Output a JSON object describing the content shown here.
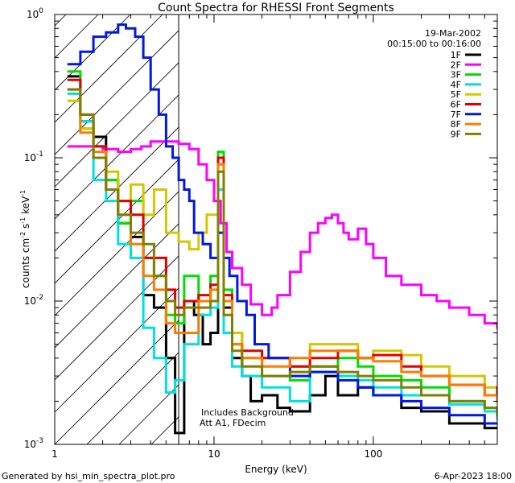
{
  "chart_data": {
    "type": "line",
    "title": "Count Spectra for RHESSI Front Segments",
    "xlabel": "Energy (keV)",
    "ylabel_main": "counts cm",
    "ylabel_sup1": "-2",
    "ylabel_mid": " s",
    "ylabel_sup2": "-1",
    "ylabel_end": " keV",
    "ylabel_sup3": "-1",
    "xscale": "log",
    "yscale": "log",
    "xlim": [
      1,
      600
    ],
    "ylim": [
      0.001,
      1.0
    ],
    "x_ticks": [
      {
        "value": 1,
        "label": "1"
      },
      {
        "value": 10,
        "label": "10"
      },
      {
        "value": 100,
        "label": "100"
      }
    ],
    "y_ticks": [
      {
        "value": 1,
        "base": "10",
        "exp": "0"
      },
      {
        "value": 0.1,
        "base": "10",
        "exp": "-1"
      },
      {
        "value": 0.01,
        "base": "10",
        "exp": "-2"
      },
      {
        "value": 0.001,
        "base": "10",
        "exp": "-3"
      }
    ],
    "date": "19-Mar-2002",
    "time_range": "00:15:00 to 00:16:00",
    "attenuator_line_x": 6.0,
    "annotations": [
      "Includes Background",
      "Att A1, FDecim"
    ],
    "footer_left": "Generated by hsi_min_spectra_plot.pro",
    "footer_right": "6-Apr-2023 18:00",
    "legend_position": "top-right",
    "series": [
      {
        "name": "1F",
        "color": "#000000",
        "points": [
          [
            1.2,
            0.37
          ],
          [
            1.45,
            0.18
          ],
          [
            1.75,
            0.14
          ],
          [
            2.1,
            0.07
          ],
          [
            2.5,
            0.035
          ],
          [
            3.0,
            0.028
          ],
          [
            3.6,
            0.011
          ],
          [
            4.2,
            0.009
          ],
          [
            5.0,
            0.004
          ],
          [
            5.7,
            0.0012
          ],
          [
            6.5,
            0.01
          ],
          [
            7.5,
            0.008
          ],
          [
            8.5,
            0.005
          ],
          [
            9.5,
            0.006
          ],
          [
            10.6,
            0.09
          ],
          [
            11.5,
            0.009
          ],
          [
            13,
            0.004
          ],
          [
            15,
            0.003
          ],
          [
            17,
            0.002
          ],
          [
            20,
            0.0022
          ],
          [
            25,
            0.0018
          ],
          [
            30,
            0.0017
          ],
          [
            40,
            0.0022
          ],
          [
            50,
            0.003
          ],
          [
            60,
            0.0022
          ],
          [
            80,
            0.0025
          ],
          [
            100,
            0.0022
          ],
          [
            150,
            0.0018
          ],
          [
            200,
            0.0017
          ],
          [
            300,
            0.0014
          ],
          [
            500,
            0.0013
          ],
          [
            600,
            0.0013
          ]
        ]
      },
      {
        "name": "2F",
        "color": "#ff00ff",
        "points": [
          [
            1.2,
            0.12
          ],
          [
            1.6,
            0.12
          ],
          [
            2.0,
            0.115
          ],
          [
            2.5,
            0.11
          ],
          [
            3.0,
            0.115
          ],
          [
            3.5,
            0.12
          ],
          [
            4.0,
            0.13
          ],
          [
            5.0,
            0.13
          ],
          [
            6.0,
            0.125
          ],
          [
            7.0,
            0.115
          ],
          [
            8.0,
            0.09
          ],
          [
            9.0,
            0.07
          ],
          [
            10,
            0.05
          ],
          [
            11,
            0.035
          ],
          [
            12,
            0.022
          ],
          [
            13,
            0.017
          ],
          [
            15,
            0.013
          ],
          [
            17,
            0.0095
          ],
          [
            20,
            0.008
          ],
          [
            23,
            0.009
          ],
          [
            25,
            0.011
          ],
          [
            30,
            0.016
          ],
          [
            35,
            0.022
          ],
          [
            40,
            0.03
          ],
          [
            45,
            0.035
          ],
          [
            50,
            0.038
          ],
          [
            55,
            0.04
          ],
          [
            60,
            0.035
          ],
          [
            65,
            0.03
          ],
          [
            70,
            0.027
          ],
          [
            80,
            0.032
          ],
          [
            90,
            0.025
          ],
          [
            100,
            0.02
          ],
          [
            120,
            0.015
          ],
          [
            150,
            0.013
          ],
          [
            200,
            0.011
          ],
          [
            250,
            0.01
          ],
          [
            300,
            0.009
          ],
          [
            400,
            0.008
          ],
          [
            500,
            0.007
          ],
          [
            600,
            0.0065
          ]
        ]
      },
      {
        "name": "3F",
        "color": "#00dd00",
        "points": [
          [
            1.2,
            0.4
          ],
          [
            1.45,
            0.16
          ],
          [
            1.75,
            0.12
          ],
          [
            2.1,
            0.07
          ],
          [
            2.5,
            0.035
          ],
          [
            3.0,
            0.05
          ],
          [
            3.6,
            0.02
          ],
          [
            4.2,
            0.015
          ],
          [
            5.0,
            0.008
          ],
          [
            5.7,
            0.007
          ],
          [
            6.5,
            0.015
          ],
          [
            8,
            0.01
          ],
          [
            9.5,
            0.015
          ],
          [
            10.6,
            0.11
          ],
          [
            11.5,
            0.012
          ],
          [
            13,
            0.006
          ],
          [
            15,
            0.004
          ],
          [
            20,
            0.003
          ],
          [
            30,
            0.0028
          ],
          [
            40,
            0.0035
          ],
          [
            60,
            0.004
          ],
          [
            80,
            0.0035
          ],
          [
            100,
            0.003
          ],
          [
            150,
            0.0028
          ],
          [
            200,
            0.0025
          ],
          [
            300,
            0.002
          ],
          [
            500,
            0.0018
          ],
          [
            600,
            0.0018
          ]
        ]
      },
      {
        "name": "4F",
        "color": "#00e0e0",
        "points": [
          [
            1.2,
            0.28
          ],
          [
            1.45,
            0.18
          ],
          [
            1.75,
            0.07
          ],
          [
            2.1,
            0.05
          ],
          [
            2.5,
            0.025
          ],
          [
            3.0,
            0.02
          ],
          [
            3.6,
            0.0065
          ],
          [
            4.2,
            0.004
          ],
          [
            5.0,
            0.0023
          ],
          [
            5.7,
            0.0028
          ],
          [
            6.5,
            0.005
          ],
          [
            8,
            0.008
          ],
          [
            9.5,
            0.009
          ],
          [
            10.6,
            0.06
          ],
          [
            11.5,
            0.006
          ],
          [
            13,
            0.0035
          ],
          [
            15,
            0.003
          ],
          [
            20,
            0.0025
          ],
          [
            30,
            0.002
          ],
          [
            40,
            0.0032
          ],
          [
            60,
            0.003
          ],
          [
            80,
            0.0028
          ],
          [
            100,
            0.0025
          ],
          [
            150,
            0.0022
          ],
          [
            200,
            0.0022
          ],
          [
            300,
            0.0019
          ],
          [
            500,
            0.0017
          ],
          [
            600,
            0.0015
          ]
        ]
      },
      {
        "name": "5F",
        "color": "#d4c600",
        "points": [
          [
            1.2,
            0.25
          ],
          [
            1.45,
            0.16
          ],
          [
            1.75,
            0.1
          ],
          [
            2.1,
            0.08
          ],
          [
            2.5,
            0.05
          ],
          [
            3.0,
            0.065
          ],
          [
            3.6,
            0.04
          ],
          [
            4.2,
            0.06
          ],
          [
            5.0,
            0.03
          ],
          [
            6.0,
            0.026
          ],
          [
            7.0,
            0.023
          ],
          [
            8.0,
            0.03
          ],
          [
            9.0,
            0.04
          ],
          [
            10.6,
            0.08
          ],
          [
            11.5,
            0.01
          ],
          [
            13,
            0.006
          ],
          [
            15,
            0.004
          ],
          [
            20,
            0.004
          ],
          [
            30,
            0.0035
          ],
          [
            40,
            0.005
          ],
          [
            60,
            0.005
          ],
          [
            80,
            0.004
          ],
          [
            100,
            0.0045
          ],
          [
            150,
            0.0042
          ],
          [
            200,
            0.0035
          ],
          [
            300,
            0.003
          ],
          [
            500,
            0.0025
          ],
          [
            600,
            0.002
          ]
        ]
      },
      {
        "name": "6F",
        "color": "#e00000",
        "points": [
          [
            1.2,
            0.35
          ],
          [
            1.45,
            0.2
          ],
          [
            1.75,
            0.12
          ],
          [
            2.1,
            0.06
          ],
          [
            2.5,
            0.05
          ],
          [
            3.0,
            0.04
          ],
          [
            3.6,
            0.02
          ],
          [
            4.2,
            0.02
          ],
          [
            5.0,
            0.012
          ],
          [
            5.7,
            0.009
          ],
          [
            6.5,
            0.01
          ],
          [
            8,
            0.011
          ],
          [
            9.5,
            0.013
          ],
          [
            10.6,
            0.1
          ],
          [
            11.5,
            0.011
          ],
          [
            13,
            0.005
          ],
          [
            15,
            0.0045
          ],
          [
            20,
            0.004
          ],
          [
            30,
            0.0035
          ],
          [
            40,
            0.004
          ],
          [
            60,
            0.0045
          ],
          [
            80,
            0.004
          ],
          [
            100,
            0.0042
          ],
          [
            150,
            0.0035
          ],
          [
            200,
            0.003
          ],
          [
            300,
            0.0026
          ],
          [
            500,
            0.0022
          ],
          [
            600,
            0.0025
          ]
        ]
      },
      {
        "name": "7F",
        "color": "#0018e0",
        "points": [
          [
            1.2,
            0.45
          ],
          [
            1.45,
            0.55
          ],
          [
            1.75,
            0.7
          ],
          [
            2.1,
            0.75
          ],
          [
            2.5,
            0.85
          ],
          [
            2.8,
            0.8
          ],
          [
            3.2,
            0.7
          ],
          [
            3.6,
            0.5
          ],
          [
            4.0,
            0.3
          ],
          [
            4.5,
            0.2
          ],
          [
            5.0,
            0.12
          ],
          [
            5.5,
            0.1
          ],
          [
            6.0,
            0.07
          ],
          [
            6.5,
            0.06
          ],
          [
            7.0,
            0.05
          ],
          [
            7.5,
            0.03
          ],
          [
            8.5,
            0.025
          ],
          [
            9.5,
            0.02
          ],
          [
            10.6,
            0.03
          ],
          [
            11.5,
            0.02
          ],
          [
            12.5,
            0.015
          ],
          [
            14,
            0.01
          ],
          [
            16,
            0.008
          ],
          [
            18,
            0.005
          ],
          [
            22,
            0.004
          ],
          [
            30,
            0.003
          ],
          [
            40,
            0.0032
          ],
          [
            60,
            0.0028
          ],
          [
            80,
            0.0025
          ],
          [
            100,
            0.0022
          ],
          [
            150,
            0.002
          ],
          [
            200,
            0.0018
          ],
          [
            300,
            0.0016
          ],
          [
            500,
            0.0014
          ],
          [
            600,
            0.0014
          ]
        ]
      },
      {
        "name": "8F",
        "color": "#ff7b00",
        "points": [
          [
            1.2,
            0.3
          ],
          [
            1.45,
            0.15
          ],
          [
            1.75,
            0.11
          ],
          [
            2.1,
            0.06
          ],
          [
            2.5,
            0.04
          ],
          [
            3.0,
            0.025
          ],
          [
            3.6,
            0.015
          ],
          [
            4.2,
            0.012
          ],
          [
            5.0,
            0.007
          ],
          [
            5.7,
            0.006
          ],
          [
            6.5,
            0.006
          ],
          [
            8,
            0.01
          ],
          [
            9.5,
            0.012
          ],
          [
            10.6,
            0.09
          ],
          [
            11.5,
            0.01
          ],
          [
            13,
            0.005
          ],
          [
            15,
            0.004
          ],
          [
            20,
            0.0035
          ],
          [
            30,
            0.004
          ],
          [
            40,
            0.0045
          ],
          [
            60,
            0.0045
          ],
          [
            80,
            0.004
          ],
          [
            100,
            0.0038
          ],
          [
            150,
            0.0032
          ],
          [
            200,
            0.003
          ],
          [
            300,
            0.0026
          ],
          [
            500,
            0.0022
          ],
          [
            600,
            0.002
          ]
        ]
      },
      {
        "name": "9F",
        "color": "#808000",
        "points": [
          [
            1.2,
            0.3
          ],
          [
            1.45,
            0.2
          ],
          [
            1.75,
            0.1
          ],
          [
            2.1,
            0.06
          ],
          [
            2.5,
            0.04
          ],
          [
            3.0,
            0.03
          ],
          [
            3.6,
            0.025
          ],
          [
            4.2,
            0.015
          ],
          [
            5.0,
            0.01
          ],
          [
            5.7,
            0.008
          ],
          [
            6.5,
            0.009
          ],
          [
            8,
            0.009
          ],
          [
            9.5,
            0.01
          ],
          [
            10.6,
            0.08
          ],
          [
            11.5,
            0.008
          ],
          [
            13,
            0.0045
          ],
          [
            15,
            0.0035
          ],
          [
            20,
            0.003
          ],
          [
            30,
            0.0032
          ],
          [
            40,
            0.0035
          ],
          [
            60,
            0.0032
          ],
          [
            80,
            0.003
          ],
          [
            100,
            0.0028
          ],
          [
            150,
            0.0025
          ],
          [
            200,
            0.0022
          ],
          [
            300,
            0.002
          ],
          [
            500,
            0.0018
          ],
          [
            600,
            0.0016
          ]
        ]
      }
    ]
  }
}
